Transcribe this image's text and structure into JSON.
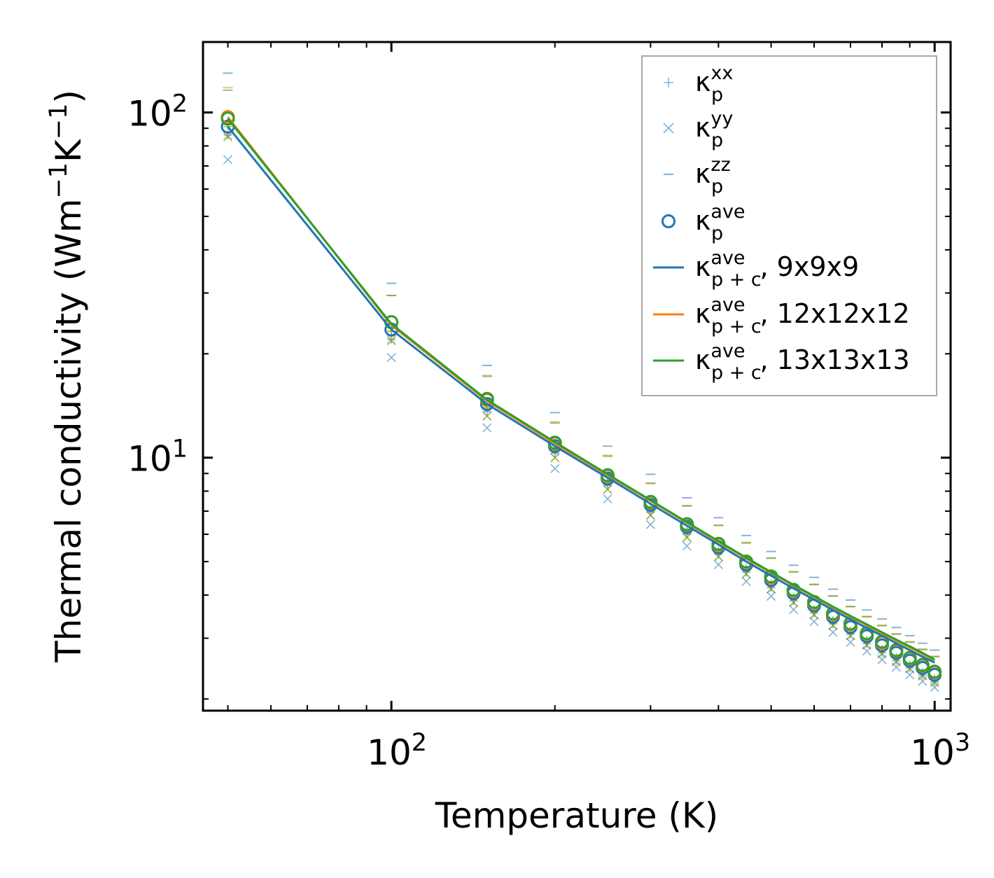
{
  "chart_data": {
    "type": "scatter",
    "scale": {
      "x": "log",
      "y": "log"
    },
    "xlabel": "Temperature (K)",
    "ylabel_main": "Thermal conductivity (Wm",
    "ylabel_sup1": "−1",
    "ylabel_mid": "K",
    "ylabel_sup2": "−1",
    "ylabel_end": ")",
    "xlim": [
      45,
      1070
    ],
    "ylim": [
      1.85,
      160
    ],
    "x_ticks": [
      {
        "value": 100,
        "base": "10",
        "exp": "2"
      },
      {
        "value": 1000,
        "base": "10",
        "exp": "3"
      }
    ],
    "y_ticks": [
      {
        "value": 10,
        "base": "10",
        "exp": "1"
      },
      {
        "value": 100,
        "base": "10",
        "exp": "2"
      }
    ],
    "temperatures": [
      50,
      100,
      150,
      200,
      250,
      300,
      350,
      400,
      450,
      500,
      550,
      600,
      650,
      700,
      750,
      800,
      850,
      900,
      950,
      1000
    ],
    "series": [
      {
        "name": "9x9x9",
        "color": "#1f77b4",
        "line": [
          91,
          23.5,
          14.3,
          10.8,
          8.75,
          7.35,
          6.35,
          5.6,
          5.0,
          4.55,
          4.18,
          3.88,
          3.62,
          3.4,
          3.21,
          3.05,
          2.9,
          2.77,
          2.65,
          2.55
        ],
        "ave": [
          91,
          23.5,
          14.3,
          10.8,
          8.7,
          7.3,
          6.3,
          5.5,
          4.9,
          4.42,
          4.05,
          3.73,
          3.46,
          3.23,
          3.04,
          2.86,
          2.72,
          2.58,
          2.46,
          2.35
        ],
        "xx": [
          86,
          22,
          13.6,
          10.3,
          8.3,
          6.95,
          6.0,
          5.25,
          4.66,
          4.2,
          3.85,
          3.55,
          3.3,
          3.08,
          2.89,
          2.72,
          2.58,
          2.46,
          2.34,
          2.24
        ],
        "yy": [
          73,
          19.5,
          12.2,
          9.3,
          7.6,
          6.4,
          5.55,
          4.9,
          4.38,
          3.97,
          3.63,
          3.35,
          3.12,
          2.92,
          2.75,
          2.6,
          2.47,
          2.35,
          2.25,
          2.16
        ],
        "zz": [
          130,
          32,
          18.5,
          13.5,
          10.8,
          8.95,
          7.65,
          6.7,
          5.95,
          5.35,
          4.88,
          4.5,
          4.16,
          3.87,
          3.62,
          3.41,
          3.22,
          3.05,
          2.9,
          2.77
        ]
      },
      {
        "name": "12x12x12",
        "color": "#ff7f0e",
        "line": [
          97,
          24.2,
          14.6,
          11.0,
          8.9,
          7.5,
          6.47,
          5.7,
          5.1,
          4.64,
          4.26,
          3.95,
          3.68,
          3.46,
          3.27,
          3.1,
          2.95,
          2.82,
          2.7,
          2.59
        ],
        "ave": [
          97,
          24.7,
          14.7,
          11.0,
          8.85,
          7.42,
          6.4,
          5.6,
          4.98,
          4.5,
          4.12,
          3.8,
          3.52,
          3.29,
          3.09,
          2.91,
          2.76,
          2.62,
          2.5,
          2.39
        ],
        "xx": [
          92,
          23.3,
          13.9,
          10.5,
          8.45,
          7.08,
          6.1,
          5.35,
          4.76,
          4.3,
          3.93,
          3.62,
          3.36,
          3.14,
          2.95,
          2.78,
          2.63,
          2.5,
          2.39,
          2.28
        ],
        "yy": [
          86,
          22,
          13.2,
          10.0,
          8.1,
          6.8,
          5.87,
          5.16,
          4.6,
          4.16,
          3.8,
          3.5,
          3.26,
          3.05,
          2.86,
          2.7,
          2.56,
          2.44,
          2.33,
          2.23
        ],
        "zz": [
          118,
          29.5,
          17.3,
          12.7,
          10.15,
          8.45,
          7.27,
          6.38,
          5.68,
          5.13,
          4.68,
          4.3,
          3.98,
          3.71,
          3.47,
          3.27,
          3.09,
          2.93,
          2.79,
          2.66
        ]
      },
      {
        "name": "13x13x13",
        "color": "#2ca02c",
        "line": [
          96,
          24.4,
          14.7,
          11.1,
          8.95,
          7.53,
          6.5,
          5.73,
          5.13,
          4.66,
          4.28,
          3.97,
          3.7,
          3.48,
          3.29,
          3.12,
          2.97,
          2.84,
          2.72,
          2.6
        ],
        "ave": [
          96,
          24.7,
          14.8,
          11.05,
          8.9,
          7.45,
          6.42,
          5.63,
          5.0,
          4.53,
          4.14,
          3.82,
          3.54,
          3.31,
          3.1,
          2.93,
          2.77,
          2.63,
          2.51,
          2.4
        ],
        "xx": [
          91,
          23.2,
          14.0,
          10.5,
          8.48,
          7.1,
          6.12,
          5.37,
          4.78,
          4.32,
          3.95,
          3.64,
          3.38,
          3.16,
          2.96,
          2.79,
          2.64,
          2.51,
          2.39,
          2.29
        ],
        "yy": [
          85,
          21.8,
          13.2,
          10.0,
          8.1,
          6.82,
          5.88,
          5.17,
          4.61,
          4.17,
          3.81,
          3.51,
          3.27,
          3.05,
          2.87,
          2.71,
          2.57,
          2.45,
          2.34,
          2.24
        ],
        "zz": [
          116,
          29.5,
          17.2,
          12.6,
          10.1,
          8.42,
          7.24,
          6.36,
          5.66,
          5.11,
          4.66,
          4.29,
          3.97,
          3.7,
          3.46,
          3.26,
          3.08,
          2.92,
          2.78,
          2.65
        ]
      }
    ],
    "legend": {
      "position": "top-right",
      "entries": [
        {
          "marker": "plus",
          "color": "#1f77b4",
          "symbol": "κ",
          "sup": "xx",
          "sub": "p",
          "suffix": ""
        },
        {
          "marker": "cross",
          "color": "#1f77b4",
          "symbol": "κ",
          "sup": "yy",
          "sub": "p",
          "suffix": ""
        },
        {
          "marker": "dash",
          "color": "#1f77b4",
          "symbol": "κ",
          "sup": "zz",
          "sub": "p",
          "suffix": ""
        },
        {
          "marker": "circle",
          "color": "#1f77b4",
          "symbol": "κ",
          "sup": "ave",
          "sub": "p",
          "suffix": ""
        },
        {
          "marker": "line",
          "color": "#1f77b4",
          "symbol": "κ",
          "sup": "ave",
          "sub": "p + c",
          "suffix": ", 9x9x9"
        },
        {
          "marker": "line",
          "color": "#ff7f0e",
          "symbol": "κ",
          "sup": "ave",
          "sub": "p + c",
          "suffix": ", 12x12x12"
        },
        {
          "marker": "line",
          "color": "#2ca02c",
          "symbol": "κ",
          "sup": "ave",
          "sub": "p + c",
          "suffix": ", 13x13x13"
        }
      ]
    }
  }
}
